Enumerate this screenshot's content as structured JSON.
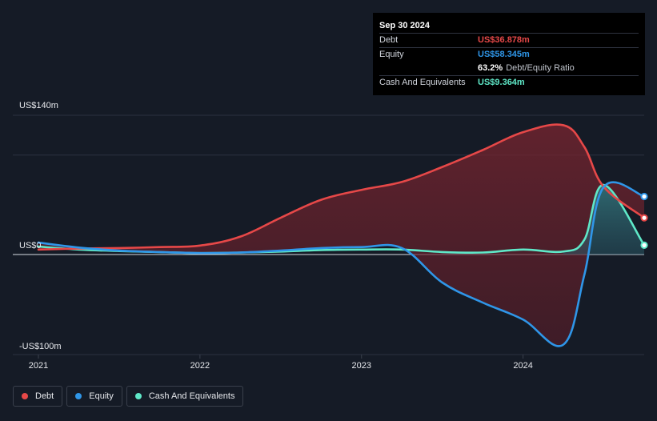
{
  "tooltip": {
    "date": "Sep 30 2024",
    "rows": [
      {
        "label": "Debt",
        "value": "US$36.878m",
        "color": "#e64848"
      },
      {
        "label": "Equity",
        "value": "US$58.345m",
        "color": "#2f96e8"
      },
      {
        "label": "",
        "value": "63.2%",
        "extra": "Debt/Equity Ratio",
        "color": "#ffffff"
      },
      {
        "label": "Cash And Equivalents",
        "value": "US$9.364m",
        "color": "#5fe8c8"
      }
    ]
  },
  "legend": [
    {
      "label": "Debt",
      "color": "#e64848"
    },
    {
      "label": "Equity",
      "color": "#2f96e8"
    },
    {
      "label": "Cash And Equivalents",
      "color": "#5fe8c8"
    }
  ],
  "chart_data": {
    "type": "area",
    "y_tick_labels": [
      "US$140m",
      "US$0",
      "-US$100m"
    ],
    "ylim": [
      -100,
      140
    ],
    "xlim": [
      2021.0,
      2024.75
    ],
    "x_ticks": [
      2021,
      2022,
      2023,
      2024
    ],
    "x_tick_labels": [
      "2021",
      "2022",
      "2023",
      "2024"
    ],
    "grid": true,
    "legend_position": "bottom-left",
    "series": [
      {
        "name": "Debt",
        "color": "#e64848",
        "x": [
          2021.0,
          2021.25,
          2021.5,
          2021.75,
          2022.0,
          2022.25,
          2022.5,
          2022.75,
          2023.0,
          2023.25,
          2023.5,
          2023.75,
          2024.0,
          2024.25,
          2024.38,
          2024.5,
          2024.75
        ],
        "y": [
          5.0,
          6.0,
          6.5,
          7.5,
          9.0,
          18.0,
          37.0,
          55.0,
          65.0,
          73.0,
          88.0,
          105.0,
          123.0,
          130.0,
          108.0,
          68.0,
          36.878
        ]
      },
      {
        "name": "Equity",
        "color": "#2f96e8",
        "x": [
          2021.0,
          2021.25,
          2021.5,
          2021.75,
          2022.0,
          2022.25,
          2022.5,
          2022.75,
          2023.0,
          2023.25,
          2023.5,
          2023.75,
          2024.0,
          2024.25,
          2024.38,
          2024.5,
          2024.75
        ],
        "y": [
          12.0,
          7.0,
          4.0,
          2.5,
          1.5,
          2.0,
          4.0,
          6.5,
          7.5,
          6.5,
          -28.0,
          -48.0,
          -65.0,
          -90.0,
          -20.0,
          68.0,
          58.345
        ]
      },
      {
        "name": "Cash And Equivalents",
        "color": "#5fe8c8",
        "x": [
          2021.0,
          2021.25,
          2021.5,
          2021.75,
          2022.0,
          2022.25,
          2022.5,
          2022.75,
          2023.0,
          2023.25,
          2023.5,
          2023.75,
          2024.0,
          2024.25,
          2024.38,
          2024.5,
          2024.75
        ],
        "y": [
          8.0,
          5.0,
          3.5,
          2.5,
          1.5,
          2.0,
          3.0,
          4.5,
          5.0,
          5.0,
          2.5,
          2.0,
          5.0,
          3.0,
          15.0,
          70.0,
          9.364
        ]
      }
    ]
  }
}
